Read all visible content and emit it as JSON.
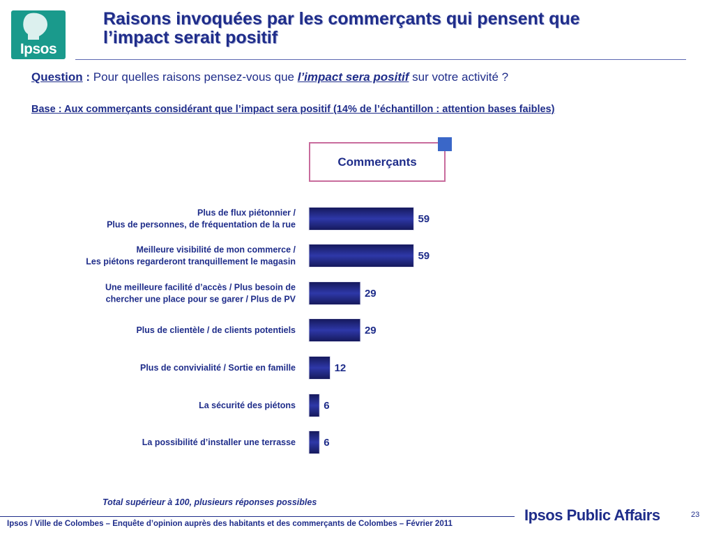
{
  "header": {
    "logo_text": "Ipsos",
    "title_line1": "Raisons invoquées par les commerçants qui pensent que",
    "title_line2": "l’impact serait positif"
  },
  "question": {
    "label": "Question",
    "colon": " : ",
    "text_before": "Pour quelles raisons pensez-vous que ",
    "emphasis": "l’impact sera positif",
    "text_after": " sur votre activité ?"
  },
  "base": "Base : Aux commerçants considérant que l’impact sera positif (14% de l’échantillon : attention bases faibles)",
  "legend": {
    "label": "Commerçants",
    "color": "#3a67c8"
  },
  "chart_data": {
    "type": "bar",
    "orientation": "horizontal",
    "categories": [
      [
        "Plus de flux piétonnier /",
        "Plus de personnes, de fréquentation de la rue"
      ],
      [
        "Meilleure visibilité de mon commerce /",
        "Les piétons regarderont tranquillement le magasin"
      ],
      [
        "Une meilleure facilité d’accès / Plus besoin de",
        "chercher une place pour se garer / Plus de PV"
      ],
      [
        "Plus de clientèle / de clients potentiels"
      ],
      [
        "Plus de convivialité / Sortie en famille"
      ],
      [
        "La sécurité des piétons"
      ],
      [
        "La possibilité d’installer une terrasse"
      ]
    ],
    "series": [
      {
        "name": "Commerçants",
        "values": [
          59,
          59,
          29,
          29,
          12,
          6,
          6
        ]
      }
    ],
    "xlim": [
      0,
      100
    ],
    "grid": false,
    "colors": {
      "bar_dark": "#1c1f6e",
      "bar_mid": "#2e38a8",
      "text": "#1f2d8a"
    }
  },
  "note": "Total supérieur à 100, plusieurs réponses possibles",
  "footer": {
    "text": "Ipsos / Ville de Colombes – Enquête d’opinion auprès des habitants et des commerçants de Colombes – Février 2011",
    "brand": "Ipsos Public Affairs",
    "page_number": "23"
  }
}
